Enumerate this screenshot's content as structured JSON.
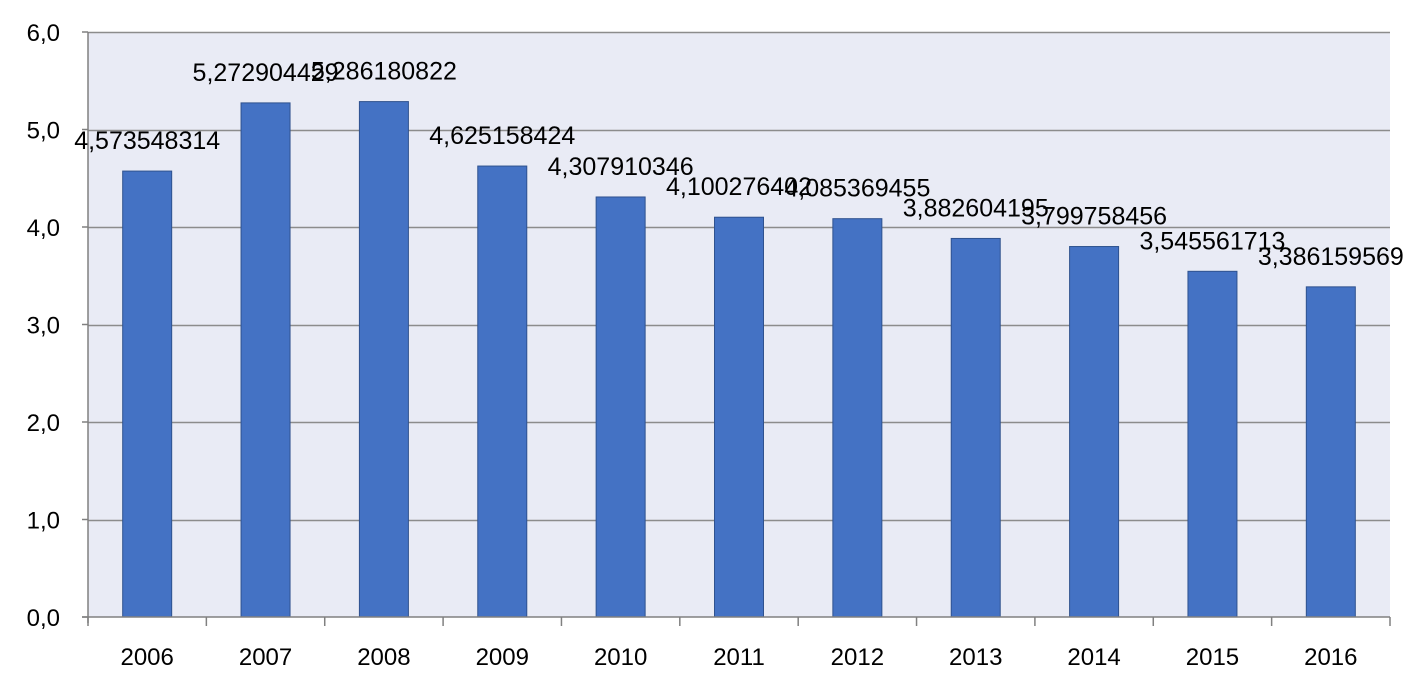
{
  "chart_data": {
    "type": "bar",
    "title": "",
    "xlabel": "",
    "ylabel": "",
    "categories": [
      "2006",
      "2007",
      "2008",
      "2009",
      "2010",
      "2011",
      "2012",
      "2013",
      "2014",
      "2015",
      "2016"
    ],
    "values": [
      4.573548314,
      5.272904429,
      5.286180822,
      4.625158424,
      4.307910346,
      4.100276402,
      4.085369455,
      3.882604195,
      3.799758456,
      3.545561713,
      3.386159569
    ],
    "data_labels": [
      "4,573548314",
      "5,272904429",
      "5,286180822",
      "4,625158424",
      "4,307910346",
      "4,100276402",
      "4,085369455",
      "3,882604195",
      "3,799758456",
      "3,545561713",
      "3,386159569"
    ],
    "ylim": [
      0,
      6
    ],
    "yticks": [
      0,
      1,
      2,
      3,
      4,
      5,
      6
    ],
    "ytick_labels": [
      "0,0",
      "1,0",
      "2,0",
      "3,0",
      "4,0",
      "5,0",
      "6,0"
    ],
    "grid": true,
    "legend": "none",
    "colors": {
      "bar_fill": "#4472C4",
      "bar_stroke": "#2F528F",
      "plot_background": "#E9EBF5",
      "gridline": "#8C8C8C",
      "axis": "#808080"
    }
  }
}
